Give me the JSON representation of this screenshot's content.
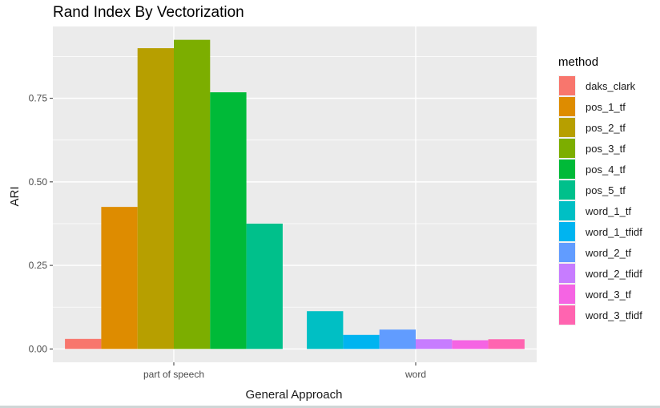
{
  "chart_data": {
    "type": "bar",
    "title": "Rand Index By Vectorization",
    "xlabel": "General Approach",
    "ylabel": "ARI",
    "categories": [
      "part of speech",
      "word"
    ],
    "ylim": [
      -0.04,
      0.965
    ],
    "yticks": [
      0.0,
      0.25,
      0.5,
      0.75
    ],
    "ytick_labels": [
      "0.00",
      "0.25",
      "0.50",
      "0.75"
    ],
    "grid": true,
    "legend": {
      "title": "method",
      "position": "right"
    },
    "series": [
      {
        "name": "daks_clark",
        "color": "#F8766D",
        "values": [
          0.03,
          0
        ]
      },
      {
        "name": "pos_1_tf",
        "color": "#DE8C00",
        "values": [
          0.425,
          0
        ]
      },
      {
        "name": "pos_2_tf",
        "color": "#B79F00",
        "values": [
          0.9,
          0
        ]
      },
      {
        "name": "pos_3_tf",
        "color": "#7CAE00",
        "values": [
          0.925,
          0
        ]
      },
      {
        "name": "pos_4_tf",
        "color": "#00BA38",
        "values": [
          0.768,
          0
        ]
      },
      {
        "name": "pos_5_tf",
        "color": "#00C08B",
        "values": [
          0.375,
          0
        ]
      },
      {
        "name": "word_1_tf",
        "color": "#00BFC4",
        "values": [
          0,
          0.113
        ]
      },
      {
        "name": "word_1_tfidf",
        "color": "#00B4F0",
        "values": [
          0,
          0.042
        ]
      },
      {
        "name": "word_2_tf",
        "color": "#619CFF",
        "values": [
          0,
          0.058
        ]
      },
      {
        "name": "word_2_tfidf",
        "color": "#C77CFF",
        "values": [
          0,
          0.029
        ]
      },
      {
        "name": "word_3_tf",
        "color": "#F564E3",
        "values": [
          0,
          0.026
        ]
      },
      {
        "name": "word_3_tfidf",
        "color": "#FF64B0",
        "values": [
          0,
          0.029
        ]
      }
    ],
    "bars": [
      {
        "category": "part of speech",
        "series": "daks_clark",
        "value": 0.03
      },
      {
        "category": "part of speech",
        "series": "pos_1_tf",
        "value": 0.425
      },
      {
        "category": "part of speech",
        "series": "pos_2_tf",
        "value": 0.9
      },
      {
        "category": "part of speech",
        "series": "pos_3_tf",
        "value": 0.925
      },
      {
        "category": "part of speech",
        "series": "pos_4_tf",
        "value": 0.768
      },
      {
        "category": "part of speech",
        "series": "pos_5_tf",
        "value": 0.375
      },
      {
        "category": "word",
        "series": "word_1_tf",
        "value": 0.113
      },
      {
        "category": "word",
        "series": "word_1_tfidf",
        "value": 0.042
      },
      {
        "category": "word",
        "series": "word_2_tf",
        "value": 0.058
      },
      {
        "category": "word",
        "series": "word_2_tfidf",
        "value": 0.029
      },
      {
        "category": "word",
        "series": "word_3_tf",
        "value": 0.026
      },
      {
        "category": "word",
        "series": "word_3_tfidf",
        "value": 0.029
      }
    ],
    "panel_background": "#EBEBEB",
    "grid_color": "#FFFFFF"
  }
}
